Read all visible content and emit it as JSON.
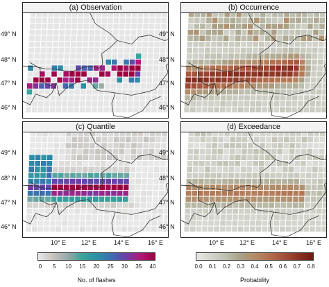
{
  "panels": [
    {
      "title": "(a) Observation",
      "scale": "flashes"
    },
    {
      "title": "(b) Occurrence",
      "scale": "probability"
    },
    {
      "title": "(c) Quantile",
      "scale": "flashes"
    },
    {
      "title": "(d) Exceedance",
      "scale": "probability"
    }
  ],
  "axes": {
    "lat_labels": [
      "49° N",
      "48° N",
      "47° N",
      "46° N"
    ],
    "lon_labels": [
      "10° E",
      "12° E",
      "14° E",
      "16° E"
    ]
  },
  "colorbars": {
    "flashes": {
      "title": "No. of flashes",
      "ticks": [
        "0",
        "5",
        "10",
        "15",
        "20",
        "25",
        "30",
        "35",
        "40"
      ],
      "colors": [
        "#e8e8e8",
        "#c7c3bf",
        "#9aa9a9",
        "#3aa39a",
        "#2b8fa6",
        "#3d6fb0",
        "#6a3fa8",
        "#b01a78",
        "#9c0040"
      ]
    },
    "probability": {
      "title": "Probability",
      "ticks": [
        "0.0",
        "0.1",
        "0.2",
        "0.3",
        "0.4",
        "0.5",
        "0.6",
        "0.7",
        "0.8"
      ],
      "colors": [
        "#e8e8e8",
        "#d3d3cc",
        "#bdbfaf",
        "#a9a288",
        "#b48a66",
        "#b26f4d",
        "#a3513a",
        "#8c3323",
        "#6e1810"
      ]
    }
  }
}
